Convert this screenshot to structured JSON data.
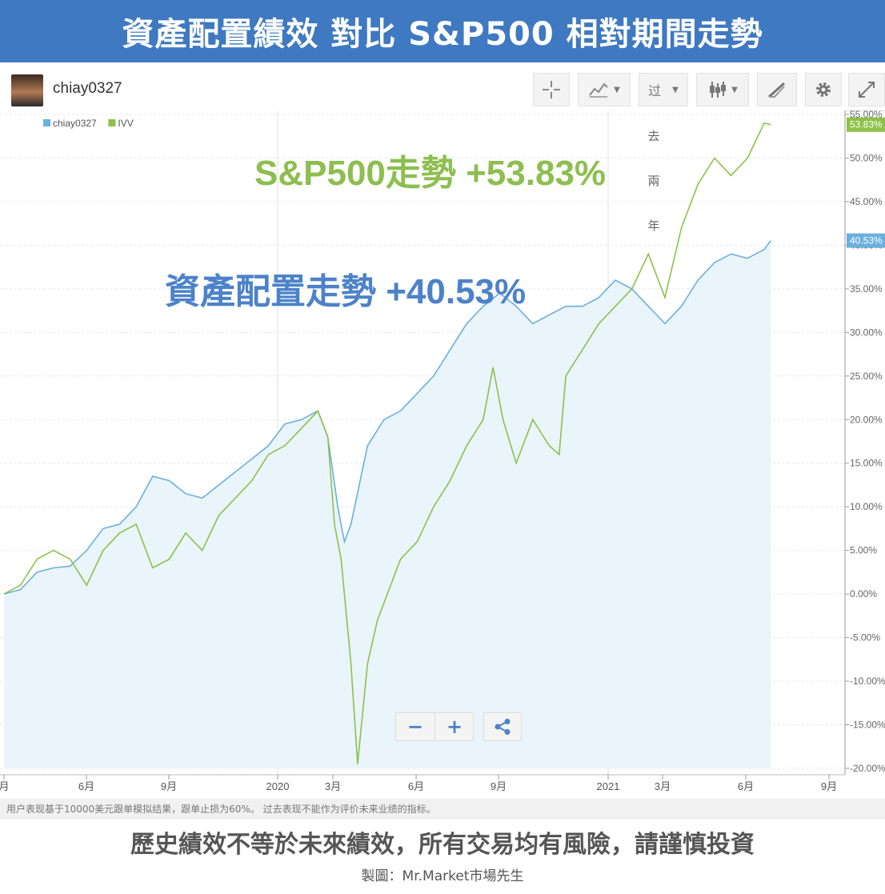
{
  "banner": {
    "title": "資產配置績效 對比 S&P500 相對期間走勢"
  },
  "header": {
    "username": "chiay0327",
    "crosshair_icon": "crosshair-icon",
    "chart_type_icon": "chart-type-icon",
    "period_label": "过",
    "candlestick_icon": "candlestick-icon",
    "draw_icon": "draw-icon",
    "settings_icon": "gear-icon",
    "expand_icon": "expand-icon"
  },
  "vertical_note": [
    "去",
    "兩",
    "年"
  ],
  "annotations": {
    "sp500": "S&P500走勢 +53.83%",
    "asset": "資產配置走勢 +40.53%"
  },
  "controls": {
    "zoom_out": "−",
    "zoom_in": "+",
    "share_icon": "share-icon"
  },
  "footnote": "用户表现基于10000美元跟单模拟结果，跟单止损为60%。 过去表现不能作为评价未来业绩的指标。",
  "disclaimer": "歷史績效不等於未來績效，所有交易均有風險，請謹慎投資",
  "credit": "製圖：Mr.Market市場先生",
  "colors": {
    "banner": "#3e79c1",
    "asset_line": "#6bb0dc",
    "asset_fill": "#eaf4fb",
    "sp_line": "#8dc149",
    "asset_text": "#4c82c9",
    "sp_text": "#8dbe4f"
  },
  "chart_data": {
    "type": "line",
    "title": "",
    "xlabel": "",
    "ylabel": "",
    "ylim": [
      -20,
      55
    ],
    "x_ticks": [
      "月",
      "6月",
      "9月",
      "2020",
      "3月",
      "6月",
      "9月",
      "2021",
      "3月",
      "6月",
      "9月"
    ],
    "y_ticks": [
      "55.00%",
      "50.00%",
      "45.00%",
      "40.00%",
      "35.00%",
      "30.00%",
      "25.00%",
      "20.00%",
      "15.00%",
      "10.00%",
      "5.00%",
      "0.00%",
      "-5.00%",
      "-10.00%",
      "-15.00%",
      "-20.00%"
    ],
    "legend_position": "top-left",
    "series": [
      {
        "name": "chiay0327",
        "color": "#6bb0dc",
        "fill": true,
        "last_label": "40.53%",
        "points": [
          [
            0,
            0
          ],
          [
            0.5,
            0.5
          ],
          [
            1,
            2.5
          ],
          [
            1.5,
            3
          ],
          [
            2,
            3.2
          ],
          [
            2.5,
            5
          ],
          [
            3,
            7.5
          ],
          [
            3.5,
            8
          ],
          [
            4,
            10
          ],
          [
            4.5,
            13.5
          ],
          [
            5,
            13
          ],
          [
            5.5,
            11.5
          ],
          [
            6,
            11
          ],
          [
            6.5,
            12.5
          ],
          [
            7,
            14
          ],
          [
            7.5,
            15.5
          ],
          [
            8,
            17
          ],
          [
            8.5,
            19.5
          ],
          [
            9,
            20
          ],
          [
            9.5,
            21
          ],
          [
            9.8,
            18
          ],
          [
            10.1,
            10
          ],
          [
            10.3,
            6
          ],
          [
            10.5,
            8
          ],
          [
            11,
            17
          ],
          [
            11.5,
            20
          ],
          [
            12,
            21
          ],
          [
            12.5,
            23
          ],
          [
            13,
            25
          ],
          [
            13.5,
            28
          ],
          [
            14,
            31
          ],
          [
            14.5,
            33
          ],
          [
            15,
            34.5
          ],
          [
            15.5,
            33
          ],
          [
            16,
            31
          ],
          [
            16.5,
            32
          ],
          [
            17,
            33
          ],
          [
            17.5,
            33
          ],
          [
            18,
            34
          ],
          [
            18.5,
            36
          ],
          [
            19,
            35
          ],
          [
            19.5,
            33
          ],
          [
            20,
            31
          ],
          [
            20.5,
            33
          ],
          [
            21,
            36
          ],
          [
            21.5,
            38
          ],
          [
            22,
            39
          ],
          [
            22.5,
            38.5
          ],
          [
            23,
            39.5
          ],
          [
            23.2,
            40.53
          ]
        ]
      },
      {
        "name": "IVV",
        "color": "#8dc149",
        "fill": false,
        "last_label": "53.83%",
        "points": [
          [
            0,
            0
          ],
          [
            0.5,
            1
          ],
          [
            1,
            4
          ],
          [
            1.5,
            5
          ],
          [
            2,
            4
          ],
          [
            2.5,
            1
          ],
          [
            3,
            5
          ],
          [
            3.5,
            7
          ],
          [
            4,
            8
          ],
          [
            4.5,
            3
          ],
          [
            5,
            4
          ],
          [
            5.5,
            7
          ],
          [
            6,
            5
          ],
          [
            6.5,
            9
          ],
          [
            7,
            11
          ],
          [
            7.5,
            13
          ],
          [
            8,
            16
          ],
          [
            8.5,
            17
          ],
          [
            9,
            19
          ],
          [
            9.5,
            21
          ],
          [
            9.8,
            18
          ],
          [
            10,
            8
          ],
          [
            10.2,
            4
          ],
          [
            10.5,
            -8
          ],
          [
            10.7,
            -19.5
          ],
          [
            11,
            -8
          ],
          [
            11.3,
            -3
          ],
          [
            11.6,
            0
          ],
          [
            12,
            4
          ],
          [
            12.5,
            6
          ],
          [
            13,
            10
          ],
          [
            13.5,
            13
          ],
          [
            14,
            17
          ],
          [
            14.5,
            20
          ],
          [
            14.8,
            26
          ],
          [
            15.1,
            20
          ],
          [
            15.5,
            15
          ],
          [
            16,
            20
          ],
          [
            16.5,
            17
          ],
          [
            16.8,
            16
          ],
          [
            17,
            25
          ],
          [
            17.5,
            28
          ],
          [
            18,
            31
          ],
          [
            18.5,
            33
          ],
          [
            19,
            35
          ],
          [
            19.5,
            39
          ],
          [
            19.8,
            36
          ],
          [
            20,
            34
          ],
          [
            20.5,
            42
          ],
          [
            21,
            47
          ],
          [
            21.5,
            50
          ],
          [
            22,
            48
          ],
          [
            22.5,
            50
          ],
          [
            23,
            54
          ],
          [
            23.2,
            53.83
          ]
        ]
      }
    ]
  }
}
